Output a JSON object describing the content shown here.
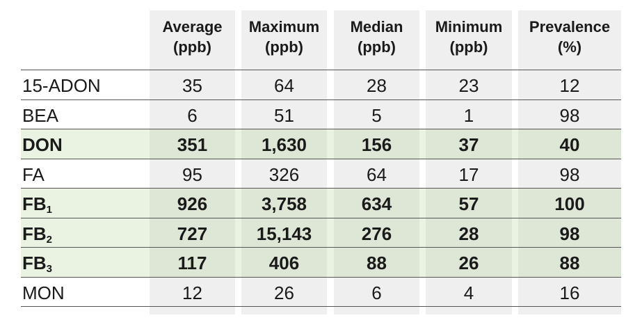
{
  "table": {
    "columns": [
      {
        "name": "Average",
        "unit": "(ppb)"
      },
      {
        "name": "Maximum",
        "unit": "(ppb)"
      },
      {
        "name": "Median",
        "unit": "(ppb)"
      },
      {
        "name": "Minimum",
        "unit": "(ppb)"
      },
      {
        "name": "Prevalence",
        "unit": "(%)"
      }
    ],
    "rows": [
      {
        "label": "15-ADON",
        "highlight": false,
        "values": [
          "35",
          "64",
          "28",
          "23",
          "12"
        ]
      },
      {
        "label": "BEA",
        "highlight": false,
        "values": [
          "6",
          "51",
          "5",
          "1",
          "98"
        ]
      },
      {
        "label": "DON",
        "highlight": true,
        "values": [
          "351",
          "1,630",
          "156",
          "37",
          "40"
        ]
      },
      {
        "label": "FA",
        "highlight": false,
        "values": [
          "95",
          "326",
          "64",
          "17",
          "98"
        ]
      },
      {
        "label": "FB",
        "subscript": "1",
        "highlight": true,
        "values": [
          "926",
          "3,758",
          "634",
          "57",
          "100"
        ]
      },
      {
        "label": "FB",
        "subscript": "2",
        "highlight": true,
        "values": [
          "727",
          "15,143",
          "276",
          "28",
          "98"
        ]
      },
      {
        "label": "FB",
        "subscript": "3",
        "highlight": true,
        "values": [
          "117",
          "406",
          "88",
          "26",
          "88"
        ]
      },
      {
        "label": "MON",
        "highlight": false,
        "values": [
          "12",
          "26",
          "6",
          "4",
          "16"
        ]
      }
    ]
  }
}
